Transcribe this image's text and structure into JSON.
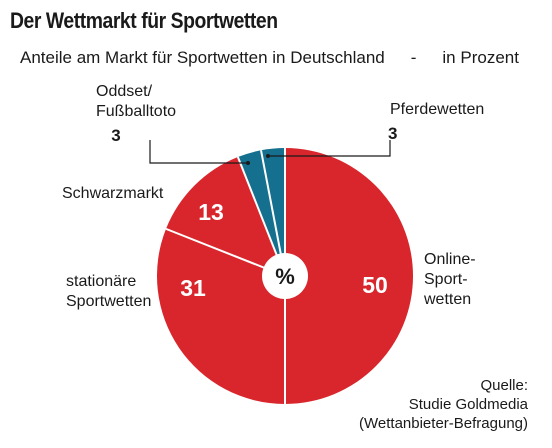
{
  "title": "Der Wettmarkt für Sportwetten",
  "subtitle": "Anteile am Markt für Sportwetten in Deutschland",
  "subtitle_separator": "-",
  "unit": "in Prozent",
  "center_symbol": "%",
  "source": {
    "line1": "Quelle:",
    "line2": "Studie Goldmedia",
    "line3": "(Wettanbieter-Befragung)"
  },
  "chart_data": {
    "type": "pie",
    "unit": "in Prozent",
    "start": "12 o'clock",
    "direction": "clockwise",
    "categories": [
      "Online-Sportwetten",
      "stationäre Sportwetten",
      "Schwarzmarkt",
      "Oddset/Fußballtoto",
      "Pferdewetten"
    ],
    "values": [
      50,
      31,
      13,
      3,
      3
    ],
    "colors": [
      "#d8262c",
      "#d8262c",
      "#d8262c",
      "#15708f",
      "#15708f"
    ]
  },
  "labels": {
    "online_1": "Online-",
    "online_2": "Sport-",
    "online_3": "wetten",
    "stationaer_1": "stationäre",
    "stationaer_2": "Sportwetten",
    "schwarzmarkt": "Schwarzmarkt",
    "oddset_1": "Oddset/",
    "oddset_2": "Fußballtoto",
    "oddset_value": "3",
    "pferde": "Pferdewetten",
    "pferde_value": "3"
  },
  "slice_values": {
    "online": "50",
    "stationaer": "31",
    "schwarzmarkt": "13"
  }
}
